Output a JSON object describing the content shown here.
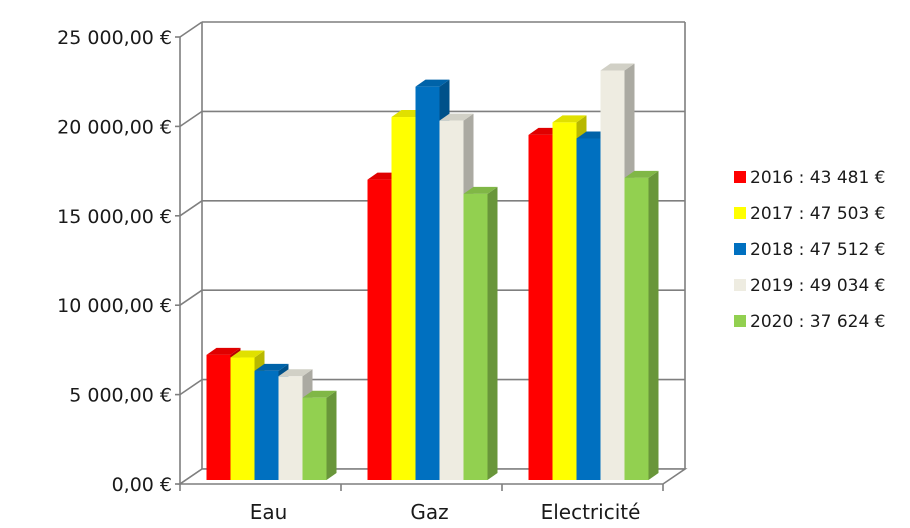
{
  "chart_data": {
    "type": "bar",
    "style": "3d-clustered-column",
    "title": "",
    "xlabel": "",
    "ylabel": "",
    "categories": [
      "Eau",
      "Gaz",
      "Electricité"
    ],
    "ylim": [
      0,
      25000
    ],
    "yticks": [
      0,
      5000,
      10000,
      15000,
      20000,
      25000
    ],
    "ytick_labels": [
      "0,00 €",
      "5 000,00 €",
      "10 000,00 €",
      "15 000,00 €",
      "20 000,00 €",
      "25 000,00 €"
    ],
    "grid": true,
    "legend_position": "right",
    "series": [
      {
        "name": "2016 : 43 481 €",
        "color": "#ff0000",
        "values": [
          7000,
          16800,
          19300
        ]
      },
      {
        "name": "2017 : 47 503 €",
        "color": "#ffff00",
        "values": [
          6850,
          20300,
          20000
        ]
      },
      {
        "name": "2018 : 47 512 €",
        "color": "#0070c0",
        "values": [
          6100,
          22000,
          19100
        ]
      },
      {
        "name": "2019 : 49 034 €",
        "color": "#eeece1",
        "values": [
          5800,
          20100,
          22900
        ]
      },
      {
        "name": "2020 : 37 624 €",
        "color": "#92d050",
        "values": [
          4600,
          16000,
          16900
        ]
      }
    ]
  }
}
